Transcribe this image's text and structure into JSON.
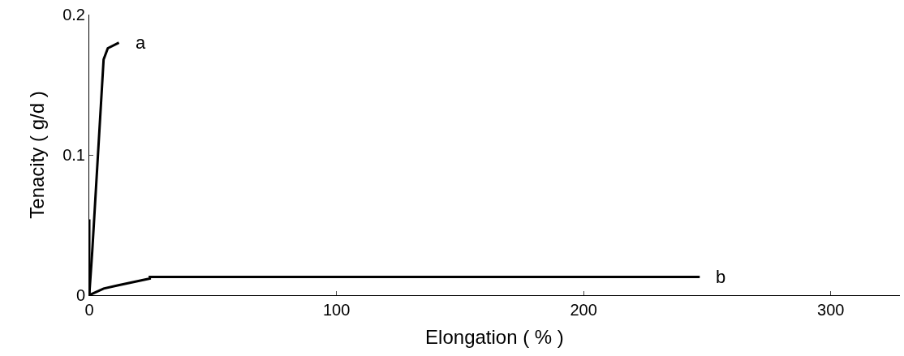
{
  "chart_data": {
    "type": "line",
    "xlabel": "Elongation ( % )",
    "ylabel": "Tenacity ( g/d )",
    "xlim": [
      0,
      328
    ],
    "xticks": [
      0,
      100,
      200,
      300
    ],
    "ylim": [
      0,
      0.2
    ],
    "yticks": [
      0,
      0.1,
      0.2
    ],
    "legend": false,
    "marker": "none",
    "line_style": "solid",
    "series": [
      {
        "name": "a",
        "color": "#000000",
        "x": [
          0,
          1.2,
          5.8,
          7.5,
          12
        ],
        "values": [
          0,
          0.031,
          0.168,
          0.176,
          0.18
        ]
      },
      {
        "color": "#000000",
        "x": [
          0,
          0
        ],
        "values": [
          0,
          0.054
        ]
      },
      {
        "name": "b",
        "color": "#000000",
        "x": [
          0,
          5.8,
          11.4,
          24.5,
          24.5,
          247
        ],
        "values": [
          0,
          0.0047,
          0.0069,
          0.0118,
          0.013,
          0.013
        ]
      }
    ]
  }
}
